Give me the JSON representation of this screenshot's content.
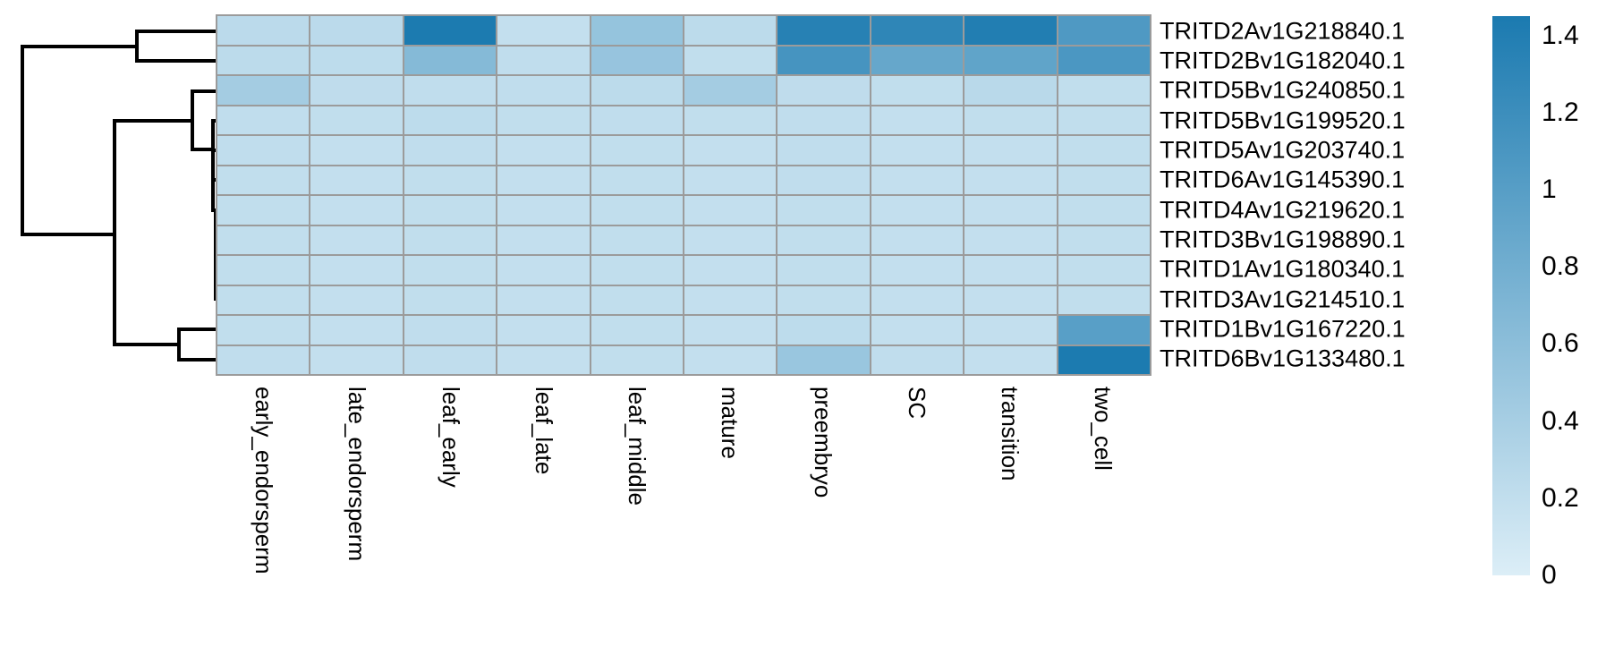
{
  "chart_data": {
    "type": "heatmap",
    "title": "",
    "xlabel": "",
    "ylabel": "",
    "legend_position": "right",
    "columns": [
      "early_endorsperm",
      "late_endorsperm",
      "leaf_early",
      "leaf_late",
      "leaf_middle",
      "mature",
      "preembryo",
      "SC",
      "transition",
      "two_cell"
    ],
    "rows": [
      "TRITD2Av1G218840.1",
      "TRITD2Bv1G182040.1",
      "TRITD5Bv1G240850.1",
      "TRITD5Bv1G199520.1",
      "TRITD5Av1G203740.1",
      "TRITD6Av1G145390.1",
      "TRITD4Av1G219620.1",
      "TRITD3Bv1G198890.1",
      "TRITD1Av1G180340.1",
      "TRITD3Av1G214510.1",
      "TRITD1Bv1G167220.1",
      "TRITD6Bv1G133480.1"
    ],
    "values": [
      [
        0.25,
        0.25,
        1.44,
        0.19,
        0.53,
        0.24,
        1.36,
        1.3,
        1.4,
        1.06
      ],
      [
        0.24,
        0.23,
        0.65,
        0.21,
        0.52,
        0.2,
        1.13,
        0.89,
        0.93,
        1.09
      ],
      [
        0.42,
        0.22,
        0.21,
        0.21,
        0.24,
        0.42,
        0.22,
        0.2,
        0.26,
        0.2
      ],
      [
        0.21,
        0.2,
        0.23,
        0.2,
        0.21,
        0.2,
        0.21,
        0.19,
        0.2,
        0.2
      ],
      [
        0.21,
        0.19,
        0.21,
        0.19,
        0.2,
        0.19,
        0.21,
        0.19,
        0.19,
        0.2
      ],
      [
        0.2,
        0.19,
        0.2,
        0.19,
        0.2,
        0.19,
        0.21,
        0.19,
        0.19,
        0.2
      ],
      [
        0.2,
        0.19,
        0.2,
        0.19,
        0.2,
        0.19,
        0.2,
        0.19,
        0.19,
        0.2
      ],
      [
        0.2,
        0.19,
        0.2,
        0.19,
        0.2,
        0.19,
        0.2,
        0.19,
        0.19,
        0.2
      ],
      [
        0.2,
        0.19,
        0.2,
        0.19,
        0.2,
        0.19,
        0.2,
        0.19,
        0.19,
        0.2
      ],
      [
        0.2,
        0.19,
        0.2,
        0.19,
        0.2,
        0.19,
        0.2,
        0.19,
        0.19,
        0.2
      ],
      [
        0.2,
        0.19,
        0.21,
        0.19,
        0.2,
        0.19,
        0.23,
        0.19,
        0.19,
        0.99
      ],
      [
        0.21,
        0.19,
        0.21,
        0.19,
        0.2,
        0.19,
        0.5,
        0.21,
        0.19,
        1.44
      ]
    ],
    "colorbar": {
      "vmin": 0,
      "vmax": 1.45,
      "tick_values": [
        1.4,
        1.2,
        1,
        0.8,
        0.6,
        0.4,
        0.2,
        0
      ],
      "tick_labels": [
        "1.4",
        "1.2",
        "1",
        "0.8",
        "0.6",
        "0.4",
        "0.2",
        "0"
      ],
      "color_high": "#1b7ab0",
      "color_low": "#dceef7"
    },
    "grid_line_color": "#9b9b9b",
    "dendrogram_color": "#000000",
    "row_dendrogram_segments": [
      [
        25,
        52,
        153,
        52
      ],
      [
        153,
        35,
        153,
        68
      ],
      [
        153,
        35,
        243,
        35
      ],
      [
        153,
        68,
        243,
        68
      ],
      [
        25,
        52,
        25,
        262
      ],
      [
        25,
        262,
        128,
        262
      ],
      [
        128,
        135,
        128,
        385
      ],
      [
        128,
        135,
        215,
        135
      ],
      [
        215,
        102,
        215,
        167
      ],
      [
        215,
        102,
        243,
        102
      ],
      [
        215,
        167,
        238,
        167
      ],
      [
        238,
        135,
        238,
        235
      ],
      [
        238,
        135,
        243,
        135
      ],
      [
        238,
        168,
        243,
        168
      ],
      [
        238,
        201,
        243,
        201
      ],
      [
        238,
        235,
        243,
        235
      ],
      [
        241,
        235,
        241,
        334
      ],
      [
        241,
        268,
        243,
        268
      ],
      [
        241,
        301,
        243,
        301
      ],
      [
        241,
        334,
        243,
        334
      ],
      [
        128,
        385,
        200,
        385
      ],
      [
        200,
        368,
        200,
        402
      ],
      [
        200,
        368,
        243,
        368
      ],
      [
        200,
        402,
        243,
        402
      ]
    ]
  }
}
